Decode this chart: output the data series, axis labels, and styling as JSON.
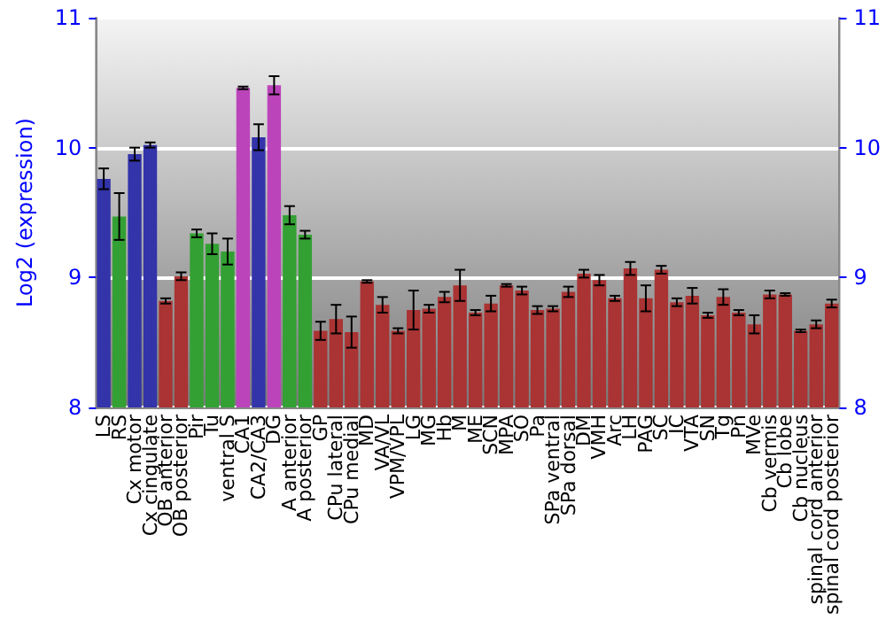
{
  "chart_data": {
    "type": "bar",
    "ylabel": "Log2 (expression)",
    "categories": [
      "LS",
      "RS",
      "Cx motor",
      "Cx cingulate",
      "OB anterior",
      "OB posterior",
      "Pir",
      "Tu",
      "ventral S",
      "CA1",
      "CA2/CA3",
      "DG",
      "A anterior",
      "A posterior",
      "GP",
      "CPu lateral",
      "CPu medial",
      "MD",
      "VA/VL",
      "VPM/VPL",
      "LG",
      "MG",
      "Hb",
      "M",
      "ME",
      "SCN",
      "MPA",
      "SO",
      "Pa",
      "SPa ventral",
      "SPa dorsal",
      "DM",
      "VMH",
      "Arc",
      "LH",
      "PAG",
      "SC",
      "IC",
      "VTA",
      "SN",
      "Tg",
      "Pn",
      "MVe",
      "Cb vermis",
      "Cb lobe",
      "Cb nucleus",
      "spinal cord anterior",
      "spinal cord posterior"
    ],
    "values": [
      9.76,
      9.47,
      9.95,
      10.02,
      8.82,
      9.01,
      9.34,
      9.26,
      9.2,
      10.46,
      10.08,
      10.48,
      9.48,
      9.33,
      8.59,
      8.68,
      8.58,
      8.97,
      8.79,
      8.59,
      8.75,
      8.76,
      8.85,
      8.94,
      8.73,
      8.8,
      8.94,
      8.9,
      8.75,
      8.76,
      8.89,
      9.03,
      8.98,
      8.84,
      9.07,
      8.84,
      9.06,
      8.81,
      8.86,
      8.71,
      8.85,
      8.73,
      8.64,
      8.87,
      8.87,
      8.59,
      8.64,
      8.8
    ],
    "errors": [
      0.08,
      0.18,
      0.05,
      0.02,
      0.02,
      0.03,
      0.03,
      0.08,
      0.1,
      0.01,
      0.1,
      0.07,
      0.07,
      0.03,
      0.07,
      0.11,
      0.12,
      0.01,
      0.06,
      0.02,
      0.15,
      0.03,
      0.04,
      0.12,
      0.02,
      0.06,
      0.01,
      0.03,
      0.03,
      0.02,
      0.04,
      0.03,
      0.04,
      0.02,
      0.05,
      0.1,
      0.03,
      0.03,
      0.06,
      0.02,
      0.06,
      0.02,
      0.07,
      0.03,
      0.01,
      0.01,
      0.03,
      0.03
    ],
    "colors": [
      "#3333aa",
      "#33a033",
      "#3333aa",
      "#3333aa",
      "#aa3333",
      "#aa3333",
      "#33a033",
      "#33a033",
      "#33a033",
      "#bb44bb",
      "#3333aa",
      "#bb44bb",
      "#33a033",
      "#33a033",
      "#aa3333",
      "#aa3333",
      "#aa3333",
      "#aa3333",
      "#aa3333",
      "#aa3333",
      "#aa3333",
      "#aa3333",
      "#aa3333",
      "#aa3333",
      "#aa3333",
      "#aa3333",
      "#aa3333",
      "#aa3333",
      "#aa3333",
      "#aa3333",
      "#aa3333",
      "#aa3333",
      "#aa3333",
      "#aa3333",
      "#aa3333",
      "#aa3333",
      "#aa3333",
      "#aa3333",
      "#aa3333",
      "#aa3333",
      "#aa3333",
      "#aa3333",
      "#aa3333",
      "#aa3333",
      "#aa3333",
      "#aa3333",
      "#aa3333",
      "#aa3333"
    ],
    "ylim": [
      8,
      11
    ],
    "yticks": [
      8,
      9,
      10,
      11
    ],
    "y2lim": [
      8,
      11
    ],
    "y2ticks": [
      8,
      9,
      10,
      11
    ],
    "grid": "y"
  }
}
